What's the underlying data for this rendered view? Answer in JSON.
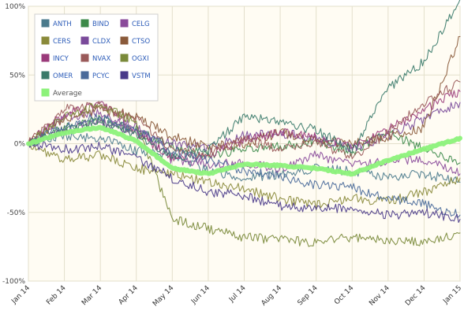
{
  "chart_data": {
    "type": "line",
    "title": "",
    "xlabel": "",
    "ylabel": "",
    "ylim": [
      -100,
      100
    ],
    "y_ticks": [
      {
        "value": 100,
        "label": "100%"
      },
      {
        "value": 50,
        "label": "50%"
      },
      {
        "value": 0,
        "label": "0%"
      },
      {
        "value": -50,
        "label": "-50%"
      },
      {
        "value": -100,
        "label": "-100%"
      }
    ],
    "x_ticks": [
      "Jan 14",
      "Feb 14",
      "Mar 14",
      "Apr 14",
      "May 14",
      "Jun 14",
      "Jul 14",
      "Aug 14",
      "Sep 14",
      "Oct 14",
      "Nov 14",
      "Dec 14",
      "Jan 15"
    ],
    "grid": true,
    "legend_position": "top-left",
    "background_color": "#fffcf3",
    "series": [
      {
        "name": "ANTH",
        "color": "#4a7a8c",
        "values": [
          0,
          6,
          4,
          -5,
          -8,
          -20,
          -25,
          -22,
          -18,
          -20,
          -25,
          -22,
          -28
        ],
        "line_width": 1.1
      },
      {
        "name": "BIND",
        "color": "#3d8a4a",
        "values": [
          0,
          12,
          18,
          10,
          -2,
          -8,
          -4,
          -2,
          2,
          -6,
          8,
          -4,
          -14
        ],
        "line_width": 1.1
      },
      {
        "name": "CELG",
        "color": "#8a4a9a",
        "values": [
          0,
          20,
          22,
          12,
          -12,
          -15,
          -14,
          -18,
          -8,
          -16,
          -12,
          -12,
          -22
        ],
        "line_width": 1.1
      },
      {
        "name": "CERS",
        "color": "#8a8a3a",
        "values": [
          0,
          -12,
          -8,
          -18,
          -22,
          -28,
          -33,
          -40,
          -45,
          -40,
          -42,
          -35,
          -25
        ],
        "line_width": 1.1
      },
      {
        "name": "CLDX",
        "color": "#7a4a9a",
        "values": [
          0,
          10,
          16,
          8,
          0,
          -4,
          6,
          8,
          4,
          -4,
          6,
          18,
          30
        ],
        "line_width": 1.1
      },
      {
        "name": "CTSO",
        "color": "#8a5a3a",
        "values": [
          0,
          18,
          25,
          20,
          5,
          -2,
          0,
          8,
          2,
          0,
          5,
          12,
          78
        ],
        "line_width": 1.1
      },
      {
        "name": "INCY",
        "color": "#9a3a7a",
        "values": [
          0,
          22,
          30,
          8,
          -10,
          -8,
          2,
          8,
          5,
          -2,
          10,
          25,
          38
        ],
        "line_width": 1.1
      },
      {
        "name": "NVAX",
        "color": "#9a5a5a",
        "values": [
          0,
          25,
          28,
          18,
          -5,
          -8,
          3,
          -4,
          0,
          -10,
          8,
          30,
          45
        ],
        "line_width": 1.1
      },
      {
        "name": "OGXI",
        "color": "#7a8a3a",
        "values": [
          0,
          20,
          28,
          15,
          -55,
          -62,
          -68,
          -70,
          -72,
          -68,
          -70,
          -72,
          -65
        ],
        "line_width": 1.1
      },
      {
        "name": "OMER",
        "color": "#3a7a6a",
        "values": [
          0,
          10,
          16,
          6,
          -10,
          -5,
          20,
          15,
          10,
          -5,
          40,
          60,
          105
        ],
        "line_width": 1.1
      },
      {
        "name": "PCYC",
        "color": "#4a6a9a",
        "values": [
          0,
          12,
          20,
          10,
          -5,
          -12,
          -20,
          -24,
          -30,
          -32,
          -40,
          -44,
          -52
        ],
        "line_width": 1.1
      },
      {
        "name": "VSTM",
        "color": "#4a3a8a",
        "values": [
          0,
          -4,
          -2,
          -10,
          -25,
          -35,
          -38,
          -45,
          -48,
          -46,
          -52,
          -50,
          -55
        ],
        "line_width": 1.1
      },
      {
        "name": "Average",
        "color": "#8cf27a",
        "values": [
          0,
          8,
          12,
          2,
          -18,
          -22,
          -15,
          -16,
          -18,
          -22,
          -12,
          -4,
          4
        ],
        "line_width": 6
      }
    ]
  }
}
